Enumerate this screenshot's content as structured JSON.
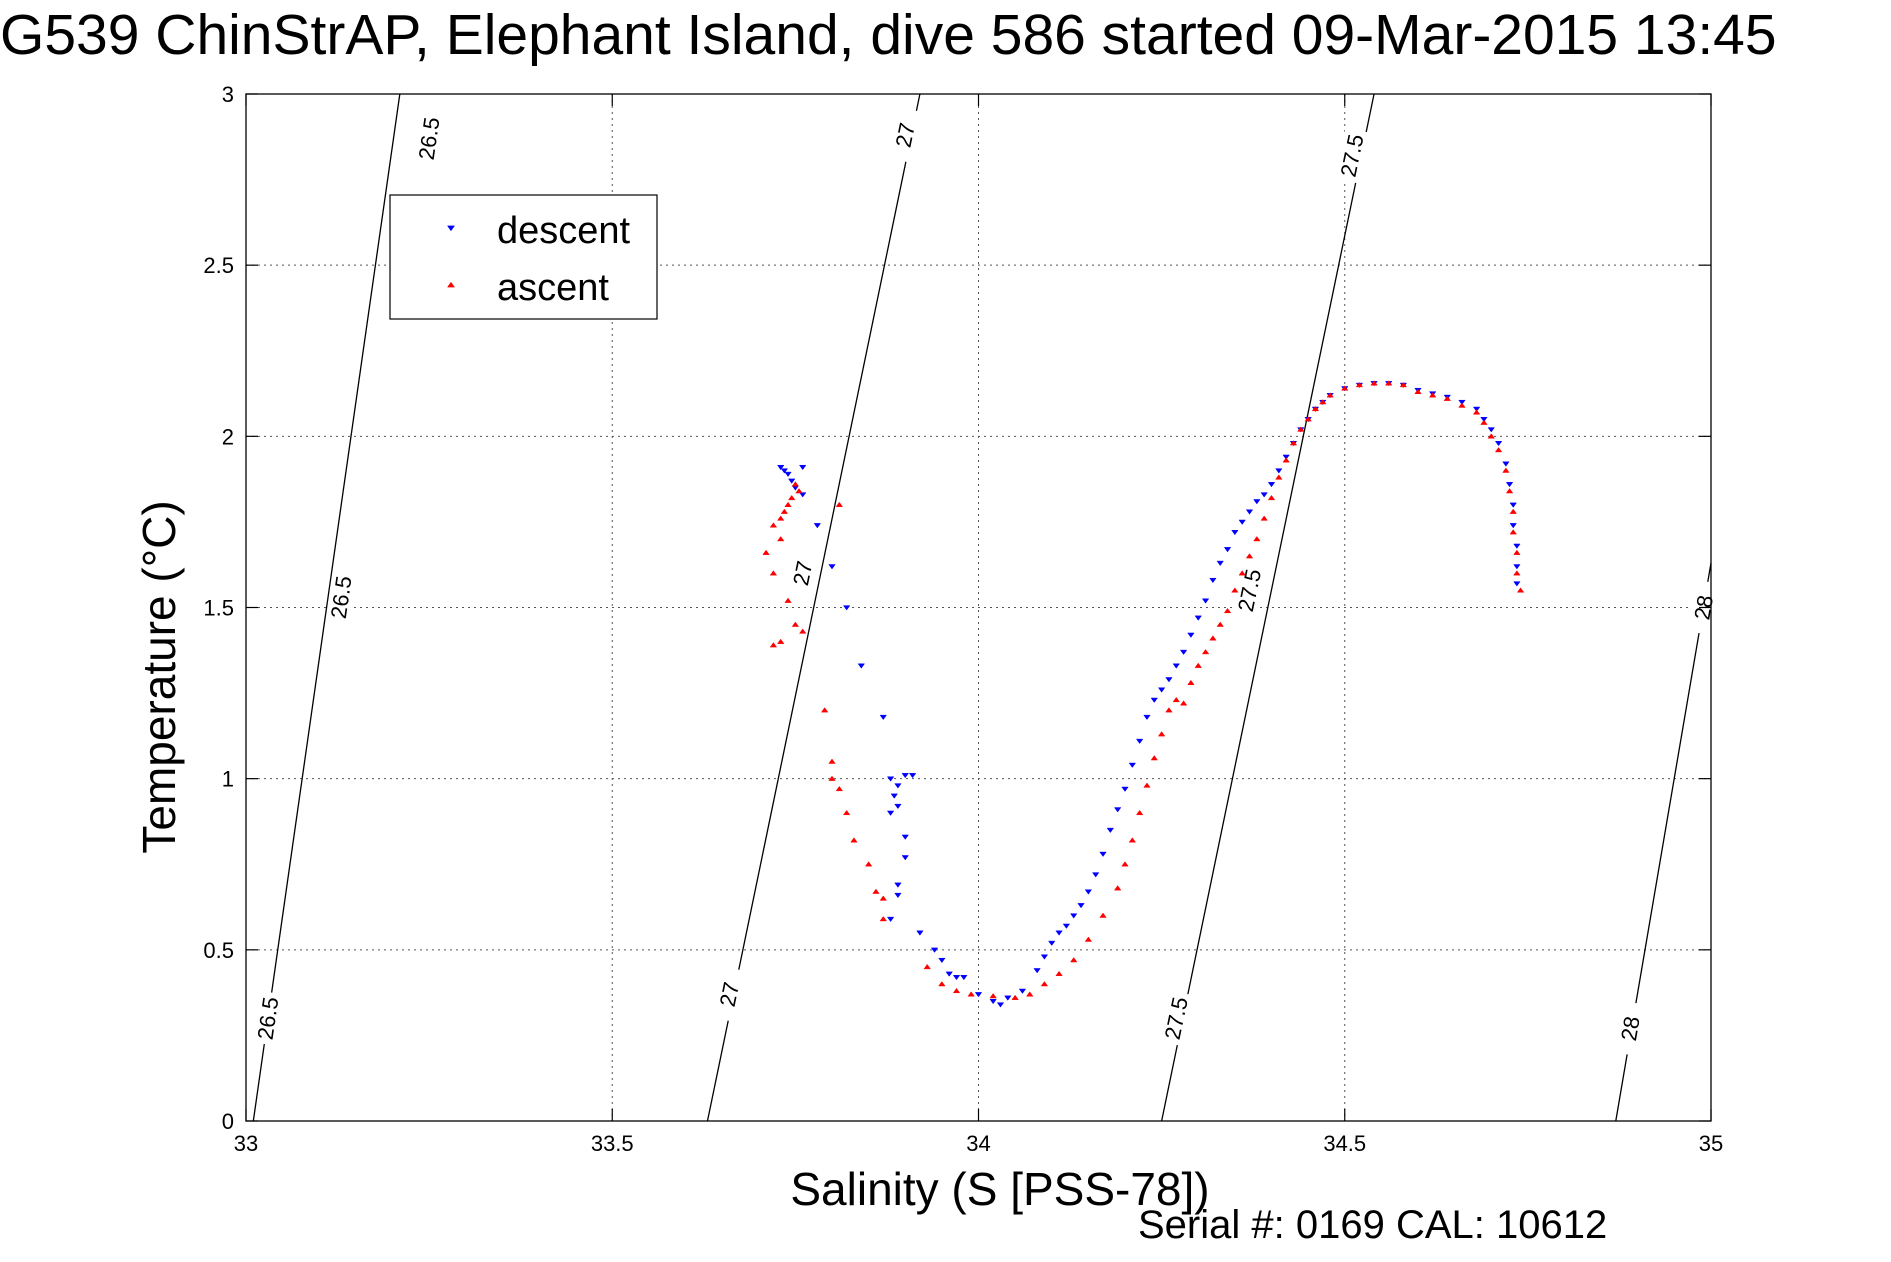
{
  "title": "G539 ChinStrAP, Elephant Island, dive 586 started 09-Mar-2015 13:45",
  "footer": "Serial #: 0169 CAL: 10612",
  "chart_data": {
    "type": "scatter",
    "xlabel": "Salinity (S [PSS-78])",
    "ylabel": "Temperature (°C)",
    "xlim": [
      33,
      35
    ],
    "ylim": [
      0,
      3
    ],
    "xticks": [
      33,
      33.5,
      34,
      34.5,
      35
    ],
    "xtick_labels": [
      "33",
      "33.5",
      "34",
      "34.5",
      "35"
    ],
    "yticks": [
      0,
      0.5,
      1,
      1.5,
      2,
      2.5,
      3
    ],
    "ytick_labels": [
      "0",
      "0.5",
      "1",
      "1.5",
      "2",
      "2.5",
      "3"
    ],
    "grid": true,
    "legend_position": "top-left",
    "contours": [
      {
        "label": "26.5",
        "line": [
          [
            33.01,
            0
          ],
          [
            33.21,
            3
          ]
        ],
        "label_positions": [
          [
            33.03,
            0.3
          ],
          [
            33.13,
            1.53
          ],
          [
            33.25,
            2.87
          ]
        ]
      },
      {
        "label": "27",
        "line": [
          [
            33.63,
            0
          ],
          [
            33.92,
            3
          ]
        ],
        "label_positions": [
          [
            33.66,
            0.37
          ],
          [
            33.76,
            1.6
          ],
          [
            33.9,
            2.88
          ]
        ]
      },
      {
        "label": "27.5",
        "line": [
          [
            34.25,
            0
          ],
          [
            34.54,
            3
          ]
        ],
        "label_positions": [
          [
            34.27,
            0.3
          ],
          [
            34.37,
            1.55
          ],
          [
            34.51,
            2.82
          ]
        ]
      },
      {
        "label": "28",
        "line": [
          [
            34.87,
            0
          ],
          [
            35.0,
            1.63
          ]
        ],
        "label_positions": [
          [
            34.89,
            0.27
          ],
          [
            34.99,
            1.5
          ]
        ]
      }
    ],
    "series": [
      {
        "name": "descent",
        "color": "#0000ff",
        "marker": "triangle-down",
        "points": [
          [
            33.73,
            1.91
          ],
          [
            33.735,
            1.9
          ],
          [
            33.74,
            1.89
          ],
          [
            33.745,
            1.87
          ],
          [
            33.75,
            1.85
          ],
          [
            33.76,
            1.91
          ],
          [
            33.76,
            1.83
          ],
          [
            33.78,
            1.74
          ],
          [
            33.8,
            1.62
          ],
          [
            33.82,
            1.5
          ],
          [
            33.84,
            1.33
          ],
          [
            33.87,
            1.18
          ],
          [
            33.88,
            1.0
          ],
          [
            33.885,
            0.95
          ],
          [
            33.89,
            0.98
          ],
          [
            33.9,
            1.01
          ],
          [
            33.91,
            1.01
          ],
          [
            33.89,
            0.92
          ],
          [
            33.88,
            0.9
          ],
          [
            33.9,
            0.83
          ],
          [
            33.9,
            0.77
          ],
          [
            33.89,
            0.69
          ],
          [
            33.89,
            0.66
          ],
          [
            33.88,
            0.59
          ],
          [
            33.92,
            0.55
          ],
          [
            33.94,
            0.5
          ],
          [
            33.95,
            0.47
          ],
          [
            33.96,
            0.43
          ],
          [
            33.97,
            0.42
          ],
          [
            33.98,
            0.42
          ],
          [
            34.0,
            0.37
          ],
          [
            34.02,
            0.35
          ],
          [
            34.03,
            0.34
          ],
          [
            34.04,
            0.36
          ],
          [
            34.06,
            0.38
          ],
          [
            34.08,
            0.44
          ],
          [
            34.09,
            0.48
          ],
          [
            34.1,
            0.52
          ],
          [
            34.11,
            0.55
          ],
          [
            34.12,
            0.57
          ],
          [
            34.13,
            0.6
          ],
          [
            34.14,
            0.63
          ],
          [
            34.15,
            0.67
          ],
          [
            34.16,
            0.72
          ],
          [
            34.17,
            0.78
          ],
          [
            34.18,
            0.85
          ],
          [
            34.19,
            0.91
          ],
          [
            34.2,
            0.97
          ],
          [
            34.21,
            1.04
          ],
          [
            34.22,
            1.11
          ],
          [
            34.23,
            1.18
          ],
          [
            34.24,
            1.23
          ],
          [
            34.25,
            1.26
          ],
          [
            34.26,
            1.29
          ],
          [
            34.27,
            1.33
          ],
          [
            34.28,
            1.37
          ],
          [
            34.29,
            1.42
          ],
          [
            34.3,
            1.47
          ],
          [
            34.31,
            1.52
          ],
          [
            34.32,
            1.58
          ],
          [
            34.33,
            1.63
          ],
          [
            34.34,
            1.67
          ],
          [
            34.35,
            1.72
          ],
          [
            34.36,
            1.75
          ],
          [
            34.37,
            1.78
          ],
          [
            34.38,
            1.81
          ],
          [
            34.39,
            1.83
          ],
          [
            34.4,
            1.86
          ],
          [
            34.41,
            1.9
          ],
          [
            34.42,
            1.94
          ],
          [
            34.43,
            1.98
          ],
          [
            34.44,
            2.02
          ],
          [
            34.45,
            2.05
          ],
          [
            34.46,
            2.08
          ],
          [
            34.47,
            2.1
          ],
          [
            34.48,
            2.12
          ],
          [
            34.5,
            2.14
          ],
          [
            34.52,
            2.15
          ],
          [
            34.54,
            2.155
          ],
          [
            34.56,
            2.155
          ],
          [
            34.58,
            2.15
          ],
          [
            34.6,
            2.135
          ],
          [
            34.62,
            2.125
          ],
          [
            34.64,
            2.115
          ],
          [
            34.66,
            2.1
          ],
          [
            34.68,
            2.08
          ],
          [
            34.69,
            2.05
          ],
          [
            34.7,
            2.02
          ],
          [
            34.71,
            1.98
          ],
          [
            34.72,
            1.92
          ],
          [
            34.725,
            1.86
          ],
          [
            34.73,
            1.8
          ],
          [
            34.73,
            1.74
          ],
          [
            34.735,
            1.68
          ],
          [
            34.735,
            1.62
          ],
          [
            34.735,
            1.57
          ]
        ]
      },
      {
        "name": "ascent",
        "color": "#ff0000",
        "marker": "triangle-up",
        "points": [
          [
            33.75,
            1.86
          ],
          [
            33.755,
            1.84
          ],
          [
            33.745,
            1.82
          ],
          [
            33.74,
            1.8
          ],
          [
            33.735,
            1.78
          ],
          [
            33.73,
            1.76
          ],
          [
            33.72,
            1.74
          ],
          [
            33.73,
            1.7
          ],
          [
            33.71,
            1.66
          ],
          [
            33.72,
            1.6
          ],
          [
            33.74,
            1.52
          ],
          [
            33.75,
            1.45
          ],
          [
            33.76,
            1.43
          ],
          [
            33.73,
            1.4
          ],
          [
            33.72,
            1.39
          ],
          [
            33.81,
            1.8
          ],
          [
            33.79,
            1.2
          ],
          [
            33.8,
            1.05
          ],
          [
            33.8,
            1.0
          ],
          [
            33.81,
            0.97
          ],
          [
            33.82,
            0.9
          ],
          [
            33.83,
            0.82
          ],
          [
            33.85,
            0.75
          ],
          [
            33.86,
            0.67
          ],
          [
            33.87,
            0.65
          ],
          [
            33.87,
            0.59
          ],
          [
            33.93,
            0.45
          ],
          [
            33.95,
            0.4
          ],
          [
            33.97,
            0.38
          ],
          [
            33.99,
            0.37
          ],
          [
            34.02,
            0.365
          ],
          [
            34.05,
            0.36
          ],
          [
            34.07,
            0.37
          ],
          [
            34.09,
            0.4
          ],
          [
            34.11,
            0.43
          ],
          [
            34.13,
            0.47
          ],
          [
            34.15,
            0.53
          ],
          [
            34.17,
            0.6
          ],
          [
            34.19,
            0.68
          ],
          [
            34.2,
            0.75
          ],
          [
            34.21,
            0.82
          ],
          [
            34.22,
            0.9
          ],
          [
            34.23,
            0.98
          ],
          [
            34.24,
            1.06
          ],
          [
            34.25,
            1.13
          ],
          [
            34.26,
            1.2
          ],
          [
            34.27,
            1.23
          ],
          [
            34.28,
            1.22
          ],
          [
            34.29,
            1.28
          ],
          [
            34.3,
            1.33
          ],
          [
            34.31,
            1.37
          ],
          [
            34.32,
            1.41
          ],
          [
            34.33,
            1.45
          ],
          [
            34.34,
            1.49
          ],
          [
            34.35,
            1.55
          ],
          [
            34.36,
            1.6
          ],
          [
            34.37,
            1.65
          ],
          [
            34.38,
            1.7
          ],
          [
            34.39,
            1.76
          ],
          [
            34.4,
            1.82
          ],
          [
            34.41,
            1.88
          ],
          [
            34.42,
            1.93
          ],
          [
            34.43,
            1.98
          ],
          [
            34.44,
            2.02
          ],
          [
            34.45,
            2.05
          ],
          [
            34.46,
            2.08
          ],
          [
            34.47,
            2.1
          ],
          [
            34.48,
            2.12
          ],
          [
            34.5,
            2.14
          ],
          [
            34.52,
            2.15
          ],
          [
            34.54,
            2.155
          ],
          [
            34.56,
            2.155
          ],
          [
            34.58,
            2.15
          ],
          [
            34.6,
            2.13
          ],
          [
            34.62,
            2.12
          ],
          [
            34.64,
            2.11
          ],
          [
            34.66,
            2.09
          ],
          [
            34.68,
            2.07
          ],
          [
            34.69,
            2.04
          ],
          [
            34.7,
            2.0
          ],
          [
            34.71,
            1.96
          ],
          [
            34.72,
            1.9
          ],
          [
            34.725,
            1.84
          ],
          [
            34.73,
            1.78
          ],
          [
            34.73,
            1.72
          ],
          [
            34.735,
            1.66
          ],
          [
            34.735,
            1.6
          ],
          [
            34.74,
            1.55
          ]
        ]
      }
    ]
  }
}
